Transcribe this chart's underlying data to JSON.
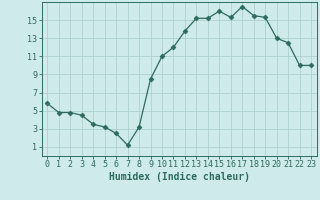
{
  "x": [
    0,
    1,
    2,
    3,
    4,
    5,
    6,
    7,
    8,
    9,
    10,
    11,
    12,
    13,
    14,
    15,
    16,
    17,
    18,
    19,
    20,
    21,
    22,
    23
  ],
  "y": [
    5.8,
    4.8,
    4.8,
    4.5,
    3.5,
    3.2,
    2.5,
    1.2,
    3.2,
    8.5,
    11.0,
    12.0,
    13.8,
    15.2,
    15.2,
    16.0,
    15.3,
    16.5,
    15.5,
    15.3,
    13.0,
    12.5,
    10.0,
    10.0
  ],
  "xlabel": "Humidex (Indice chaleur)",
  "xlim": [
    -0.5,
    23.5
  ],
  "ylim": [
    0,
    17
  ],
  "yticks": [
    1,
    3,
    5,
    7,
    9,
    11,
    13,
    15
  ],
  "xticks": [
    0,
    1,
    2,
    3,
    4,
    5,
    6,
    7,
    8,
    9,
    10,
    11,
    12,
    13,
    14,
    15,
    16,
    17,
    18,
    19,
    20,
    21,
    22,
    23
  ],
  "line_color": "#2d6b5e",
  "marker": "D",
  "marker_size": 2.5,
  "bg_color": "#ceeaea",
  "grid_color": "#aed0d0",
  "axis_fontsize": 7,
  "tick_fontsize": 6
}
